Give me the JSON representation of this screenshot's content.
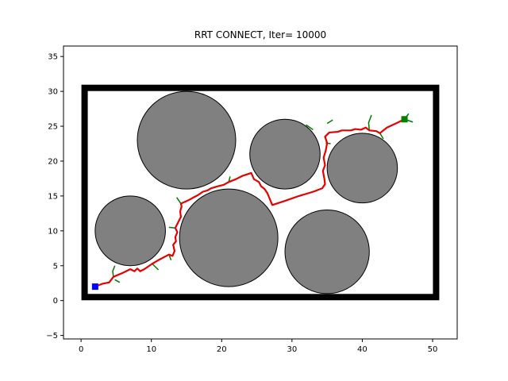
{
  "chart_data": {
    "type": "scatter",
    "title": "RRT CONNECT, Iter= 10000",
    "xlabel": "",
    "ylabel": "",
    "xlim": [
      -2.5,
      53.5
    ],
    "ylim": [
      -5.5,
      36.5
    ],
    "xticks": [
      0,
      10,
      20,
      30,
      40,
      50
    ],
    "yticks": [
      -5,
      0,
      5,
      10,
      15,
      20,
      25,
      30,
      35
    ],
    "grid": false,
    "boundary": {
      "x_min": 0.5,
      "x_max": 50.5,
      "y_min": 0.5,
      "y_max": 30.5,
      "color": "#000000"
    },
    "obstacles": [
      {
        "cx": 7,
        "cy": 10,
        "r": 5
      },
      {
        "cx": 15,
        "cy": 23,
        "r": 7
      },
      {
        "cx": 21,
        "cy": 9,
        "r": 7
      },
      {
        "cx": 29,
        "cy": 21,
        "r": 5
      },
      {
        "cx": 35,
        "cy": 7,
        "r": 6
      },
      {
        "cx": 40,
        "cy": 19,
        "r": 5
      }
    ],
    "obstacle_color": "#808080",
    "start": {
      "x": 2,
      "y": 2,
      "color": "#0000ff"
    },
    "goal": {
      "x": 46,
      "y": 26,
      "color": "#008000"
    },
    "path_color": "#e60000",
    "tree_color": "#007a00",
    "path": [
      [
        2,
        2
      ],
      [
        3,
        2.4
      ],
      [
        4,
        2.6
      ],
      [
        4.6,
        3.4
      ],
      [
        6,
        4
      ],
      [
        7,
        4.5
      ],
      [
        7.6,
        4.2
      ],
      [
        8,
        4.6
      ],
      [
        8.4,
        4.2
      ],
      [
        9,
        4.5
      ],
      [
        10,
        5.2
      ],
      [
        11,
        5.8
      ],
      [
        12.5,
        6.6
      ],
      [
        13,
        6.4
      ],
      [
        13.3,
        7.1
      ],
      [
        13.1,
        8
      ],
      [
        13.5,
        8.5
      ],
      [
        13.4,
        9.1
      ],
      [
        13.7,
        9.8
      ],
      [
        13.4,
        10.4
      ],
      [
        13.8,
        11.2
      ],
      [
        14.2,
        12
      ],
      [
        14.1,
        12.8
      ],
      [
        14.3,
        13.5
      ],
      [
        14.2,
        13.9
      ],
      [
        15.3,
        14.4
      ],
      [
        16,
        14.8
      ],
      [
        16.6,
        15.1
      ],
      [
        17.3,
        15.6
      ],
      [
        18,
        15.8
      ],
      [
        18.5,
        16.1
      ],
      [
        19.5,
        16.4
      ],
      [
        20.3,
        16.6
      ],
      [
        21,
        17
      ],
      [
        22,
        17.4
      ],
      [
        23,
        17.9
      ],
      [
        24.2,
        18.3
      ],
      [
        24.6,
        17.4
      ],
      [
        25.3,
        17
      ],
      [
        25.6,
        16.4
      ],
      [
        26.1,
        16
      ],
      [
        26.5,
        15.4
      ],
      [
        27.2,
        13.7
      ],
      [
        29,
        14.3
      ],
      [
        31,
        15
      ],
      [
        33,
        15.6
      ],
      [
        34.3,
        16.1
      ],
      [
        34.7,
        16.7
      ],
      [
        34.6,
        17.5
      ],
      [
        34.4,
        18.6
      ],
      [
        34.7,
        19.4
      ],
      [
        34.5,
        20.5
      ],
      [
        34.8,
        21.5
      ],
      [
        35,
        22.6
      ],
      [
        34.7,
        23.5
      ],
      [
        35.3,
        24.1
      ],
      [
        36.5,
        24.2
      ],
      [
        37.1,
        24.4
      ],
      [
        38.4,
        24.4
      ],
      [
        39,
        24.6
      ],
      [
        39.8,
        24.5
      ],
      [
        40.5,
        24.8
      ],
      [
        41,
        24.4
      ],
      [
        42,
        24.3
      ],
      [
        42.5,
        24
      ],
      [
        43.5,
        24.8
      ],
      [
        45,
        25.5
      ],
      [
        46,
        26
      ]
    ],
    "tree_branches": [
      [
        [
          4.6,
          3.4
        ],
        [
          4.5,
          4.2
        ],
        [
          4.8,
          5
        ]
      ],
      [
        [
          4.8,
          3
        ],
        [
          5.5,
          2.6
        ]
      ],
      [
        [
          10.2,
          5.2
        ],
        [
          11,
          4.4
        ]
      ],
      [
        [
          12.5,
          6.6
        ],
        [
          12.8,
          5.8
        ]
      ],
      [
        [
          13.4,
          10.4
        ],
        [
          12.5,
          10.5
        ]
      ],
      [
        [
          14.2,
          13.9
        ],
        [
          13.6,
          14.8
        ]
      ],
      [
        [
          21,
          17
        ],
        [
          21.2,
          17.8
        ]
      ],
      [
        [
          33,
          24.5
        ],
        [
          32,
          25.2
        ]
      ],
      [
        [
          35,
          25.4
        ],
        [
          35.8,
          25.9
        ]
      ],
      [
        [
          34.8,
          22.6
        ],
        [
          35.5,
          22.5
        ]
      ],
      [
        [
          41,
          24.4
        ],
        [
          40.9,
          25.5
        ],
        [
          41.3,
          26.6
        ]
      ],
      [
        [
          42.5,
          24
        ],
        [
          43,
          23.2
        ]
      ],
      [
        [
          46,
          26
        ],
        [
          46.6,
          26.8
        ]
      ],
      [
        [
          46,
          26
        ],
        [
          47.2,
          25.6
        ]
      ]
    ]
  }
}
